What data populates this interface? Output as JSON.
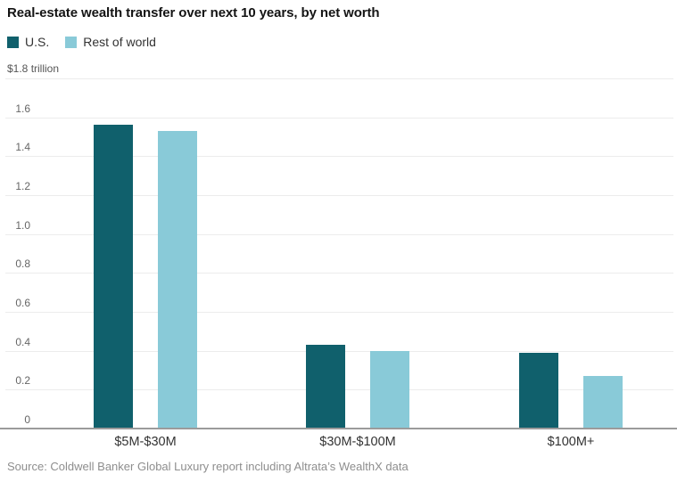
{
  "header": {
    "title": "Real-estate wealth transfer over next 10 years, by net worth"
  },
  "legend": {
    "items": [
      {
        "label": "U.S.",
        "color": "#10606c"
      },
      {
        "label": "Rest of world",
        "color": "#89cad8"
      }
    ]
  },
  "chart_data": {
    "type": "bar",
    "title": "Real-estate wealth transfer over next 10 years, by net worth",
    "categories": [
      "$5M-$30M",
      "$30M-$100M",
      "$100M+"
    ],
    "series": [
      {
        "name": "U.S.",
        "color": "#10606c",
        "values": [
          1.56,
          0.43,
          0.39
        ]
      },
      {
        "name": "Rest of world",
        "color": "#89cad8",
        "values": [
          1.53,
          0.4,
          0.27
        ]
      }
    ],
    "ylim": [
      0,
      1.8
    ],
    "yticks": [
      {
        "value": 0,
        "label": "0"
      },
      {
        "value": 0.2,
        "label": "0.2"
      },
      {
        "value": 0.4,
        "label": "0.4"
      },
      {
        "value": 0.6,
        "label": "0.6"
      },
      {
        "value": 0.8,
        "label": "0.8"
      },
      {
        "value": 1.0,
        "label": "1.0"
      },
      {
        "value": 1.2,
        "label": "1.2"
      },
      {
        "value": 1.4,
        "label": "1.4"
      },
      {
        "value": 1.6,
        "label": "1.6"
      },
      {
        "value": 1.8,
        "label": "$1.8 trillion"
      }
    ],
    "grid": "horizontal",
    "legend_position": "top-left"
  },
  "footer": {
    "source": "Source: Coldwell Banker Global Luxury report including Altrata’s WealthX data"
  }
}
